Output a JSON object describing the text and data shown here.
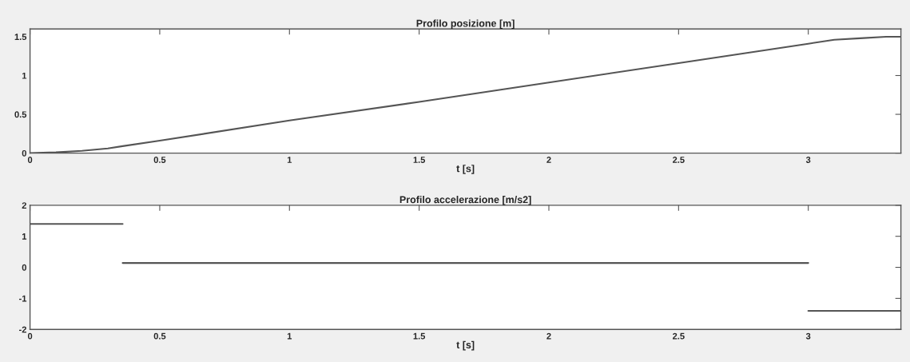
{
  "chart_data": [
    {
      "type": "line",
      "title": "Profilo posizione [m]",
      "xlabel": "t [s]",
      "xlim": [
        0,
        3.357
      ],
      "xticks": [
        0,
        0.5,
        1,
        1.5,
        2,
        2.5,
        3
      ],
      "ylim": [
        0,
        1.6
      ],
      "yticks": [
        0,
        0.5,
        1,
        1.5
      ],
      "grid": false,
      "legend": false,
      "series": [
        {
          "color": "#555555",
          "x": [
            0,
            0.1,
            0.2,
            0.3,
            0.357,
            0.5,
            1,
            1.5,
            2,
            2.5,
            3,
            3.1,
            3.2,
            3.3,
            3.357
          ],
          "values": [
            0,
            0.01,
            0.03,
            0.06,
            0.09,
            0.16,
            0.42,
            0.66,
            0.91,
            1.16,
            1.41,
            1.46,
            1.48,
            1.5,
            1.5
          ]
        }
      ]
    },
    {
      "type": "line",
      "title": "Profilo accelerazione [m/s2]",
      "xlabel": "t [s]",
      "xlim": [
        0,
        3.357
      ],
      "xticks": [
        0,
        0.5,
        1,
        1.5,
        2,
        2.5,
        3
      ],
      "ylim": [
        -2,
        2
      ],
      "yticks": [
        -2,
        -1,
        0,
        1,
        2
      ],
      "grid": false,
      "legend": false,
      "series": [
        {
          "color": "#555555",
          "x": [
            0,
            0.357
          ],
          "values": [
            1.4,
            1.4
          ]
        },
        {
          "color": "#555555",
          "x": [
            0.357,
            3
          ],
          "values": [
            0.14,
            0.14
          ]
        },
        {
          "color": "#555555",
          "x": [
            3,
            3.357
          ],
          "values": [
            -1.4,
            -1.4
          ]
        }
      ]
    }
  ]
}
